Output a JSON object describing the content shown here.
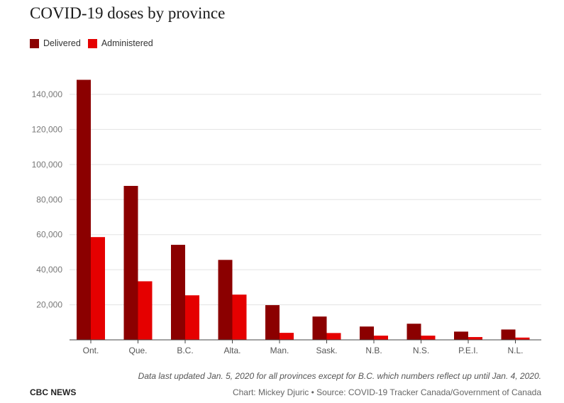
{
  "chart_data": {
    "type": "bar",
    "title": "COVID-19 doses by province",
    "xlabel": "",
    "ylabel": "",
    "ylim": [
      0,
      140000
    ],
    "yticks": [
      20000,
      40000,
      60000,
      80000,
      100000,
      120000,
      140000
    ],
    "ytick_labels": [
      "20,000",
      "40,000",
      "60,000",
      "80,000",
      "100,000",
      "120,000",
      "140,000"
    ],
    "grid": true,
    "legend_position": "top-left",
    "categories": [
      "Ont.",
      "Que.",
      "B.C.",
      "Alta.",
      "Man.",
      "Sask.",
      "N.B.",
      "N.S.",
      "P.E.I.",
      "N.L."
    ],
    "series": [
      {
        "name": "Delivered",
        "color": "#8b0000",
        "values": [
          148300,
          87800,
          54200,
          45600,
          19800,
          13300,
          7600,
          9200,
          4700,
          5900
        ]
      },
      {
        "name": "Administered",
        "color": "#e50000",
        "values": [
          58600,
          33400,
          25400,
          25800,
          4000,
          3900,
          2400,
          2400,
          1600,
          1300
        ]
      }
    ]
  },
  "footer": {
    "note": "Data last updated Jan. 5, 2020 for all provinces except for B.C. which numbers reflect up until Jan. 4, 2020.",
    "brand": "CBC NEWS",
    "credit": "Chart: Mickey Djuric • Source: COVID-19 Tracker Canada/Government of Canada"
  }
}
